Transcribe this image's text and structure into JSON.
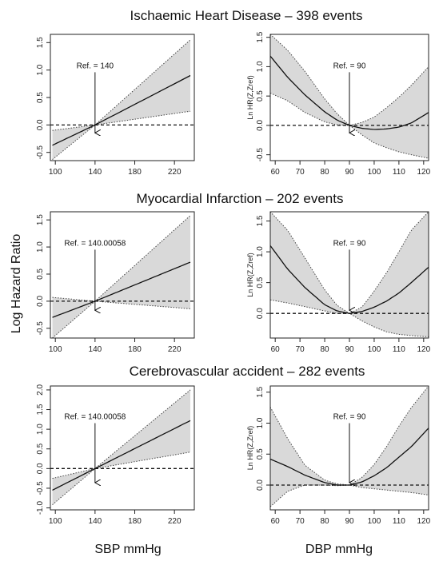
{
  "figure": {
    "y_axis_title": "Log Hazard Ratio",
    "x_axis_title_left": "SBP mmHg",
    "x_axis_title_right": "DBP mmHg",
    "rows": [
      {
        "title": "Ischaemic Heart Disease – 398 events"
      },
      {
        "title": "Myocardial Infarction – 202 events"
      },
      {
        "title": "Cerebrovascular accident – 282 events"
      }
    ]
  },
  "colors": {
    "band": "#d9d9d9",
    "line": "#111111",
    "axis": "#222222"
  },
  "chart_data": [
    {
      "type": "line",
      "row": 0,
      "col": 0,
      "ref_label": "Ref. = 140",
      "ref_x": 140,
      "ylabel": "",
      "xlim": [
        95,
        240
      ],
      "ylim": [
        -0.65,
        1.65
      ],
      "xticks": [
        100,
        140,
        180,
        220
      ],
      "yticks": [
        -0.5,
        0.0,
        0.5,
        1.0,
        1.5
      ],
      "ytick_labels": [
        "-0.5",
        "0.0",
        "0.5",
        "1.0",
        "1.5"
      ],
      "x": [
        97,
        140,
        236
      ],
      "series": [
        {
          "role": "estimate",
          "values": [
            -0.37,
            0.0,
            0.9
          ]
        },
        {
          "role": "upper",
          "values": [
            -0.1,
            0.0,
            1.55
          ]
        },
        {
          "role": "lower",
          "values": [
            -0.63,
            0.0,
            0.25
          ]
        }
      ]
    },
    {
      "type": "line",
      "row": 0,
      "col": 1,
      "ref_label": "Ref. = 90",
      "ref_x": 90,
      "ylabel": "Ln HR(Z,Zref)",
      "xlim": [
        58,
        122
      ],
      "ylim": [
        -0.6,
        1.55
      ],
      "xticks": [
        60,
        70,
        80,
        90,
        100,
        110,
        120
      ],
      "yticks": [
        -0.5,
        0.0,
        0.5,
        1.0,
        1.5
      ],
      "ytick_labels": [
        "-0.5",
        "0.0",
        "0.5",
        "1.0",
        "1.5"
      ],
      "x": [
        58,
        65,
        72,
        80,
        85,
        90,
        95,
        100,
        105,
        110,
        115,
        122
      ],
      "series": [
        {
          "role": "estimate",
          "values": [
            1.18,
            0.82,
            0.52,
            0.23,
            0.09,
            0.0,
            -0.05,
            -0.07,
            -0.06,
            -0.03,
            0.04,
            0.22
          ]
        },
        {
          "role": "upper",
          "values": [
            1.55,
            1.28,
            0.92,
            0.45,
            0.2,
            0.0,
            0.05,
            0.14,
            0.3,
            0.48,
            0.68,
            1.0
          ]
        },
        {
          "role": "lower",
          "values": [
            0.55,
            0.42,
            0.22,
            0.06,
            0.01,
            0.0,
            -0.16,
            -0.3,
            -0.38,
            -0.45,
            -0.5,
            -0.56
          ]
        }
      ]
    },
    {
      "type": "line",
      "row": 1,
      "col": 0,
      "ref_label": "Ref. = 140.00058",
      "ref_x": 140,
      "ylabel": "",
      "xlim": [
        95,
        240
      ],
      "ylim": [
        -0.68,
        1.65
      ],
      "xticks": [
        100,
        140,
        180,
        220
      ],
      "yticks": [
        -0.5,
        0.0,
        0.5,
        1.0,
        1.5
      ],
      "ytick_labels": [
        "-0.5",
        "0.0",
        "0.5",
        "1.0",
        "1.5"
      ],
      "x": [
        97,
        140,
        236
      ],
      "series": [
        {
          "role": "estimate",
          "values": [
            -0.3,
            0.0,
            0.72
          ]
        },
        {
          "role": "upper",
          "values": [
            0.07,
            0.0,
            1.58
          ]
        },
        {
          "role": "lower",
          "values": [
            -0.68,
            0.0,
            -0.14
          ]
        }
      ]
    },
    {
      "type": "line",
      "row": 1,
      "col": 1,
      "ref_label": "Ref. = 90",
      "ref_x": 90,
      "ylabel": "Ln HR(Z,Zref)",
      "xlim": [
        58,
        122
      ],
      "ylim": [
        -0.4,
        1.65
      ],
      "xticks": [
        60,
        70,
        80,
        90,
        100,
        110,
        120
      ],
      "yticks": [
        0.0,
        0.5,
        1.0,
        1.5
      ],
      "ytick_labels": [
        "0.0",
        "0.5",
        "1.0",
        "1.5"
      ],
      "x": [
        58,
        65,
        72,
        80,
        85,
        90,
        95,
        100,
        105,
        110,
        115,
        122
      ],
      "series": [
        {
          "role": "estimate",
          "values": [
            1.1,
            0.72,
            0.42,
            0.14,
            0.04,
            0.0,
            0.03,
            0.1,
            0.2,
            0.33,
            0.5,
            0.75
          ]
        },
        {
          "role": "upper",
          "values": [
            1.65,
            1.35,
            0.9,
            0.38,
            0.13,
            0.0,
            0.1,
            0.36,
            0.66,
            1.0,
            1.35,
            1.65
          ]
        },
        {
          "role": "lower",
          "values": [
            0.22,
            0.17,
            0.11,
            0.04,
            0.0,
            0.0,
            -0.12,
            -0.22,
            -0.3,
            -0.34,
            -0.36,
            -0.38
          ]
        }
      ]
    },
    {
      "type": "line",
      "row": 2,
      "col": 0,
      "ref_label": "Ref. = 140.00058",
      "ref_x": 140,
      "ylabel": "",
      "xlim": [
        95,
        240
      ],
      "ylim": [
        -1.05,
        2.1
      ],
      "xticks": [
        100,
        140,
        180,
        220
      ],
      "yticks": [
        -1.0,
        -0.5,
        0.0,
        0.5,
        1.0,
        1.5,
        2.0
      ],
      "ytick_labels": [
        "-1.0",
        "-0.5",
        "0.0",
        "0.5",
        "1.0",
        "1.5",
        "2.0"
      ],
      "x": [
        97,
        140,
        236
      ],
      "series": [
        {
          "role": "estimate",
          "values": [
            -0.55,
            0.0,
            1.22
          ]
        },
        {
          "role": "upper",
          "values": [
            -0.25,
            0.0,
            2.0
          ]
        },
        {
          "role": "lower",
          "values": [
            -0.92,
            0.0,
            0.42
          ]
        }
      ]
    },
    {
      "type": "line",
      "row": 2,
      "col": 1,
      "ref_label": "Ref. = 90",
      "ref_x": 90,
      "ylabel": "Ln HR(Z,Zref)",
      "xlim": [
        58,
        122
      ],
      "ylim": [
        -0.4,
        1.6
      ],
      "xticks": [
        60,
        70,
        80,
        90,
        100,
        110,
        120
      ],
      "yticks": [
        0.0,
        0.5,
        1.0,
        1.5
      ],
      "ytick_labels": [
        "0.0",
        "0.5",
        "1.0",
        "1.5"
      ],
      "x": [
        58,
        65,
        72,
        80,
        85,
        90,
        95,
        100,
        105,
        110,
        115,
        122
      ],
      "series": [
        {
          "role": "estimate",
          "values": [
            0.42,
            0.3,
            0.16,
            0.04,
            0.0,
            0.0,
            0.05,
            0.15,
            0.28,
            0.45,
            0.62,
            0.92
          ]
        },
        {
          "role": "upper",
          "values": [
            1.26,
            0.75,
            0.32,
            0.08,
            0.02,
            0.0,
            0.12,
            0.33,
            0.62,
            0.95,
            1.25,
            1.6
          ]
        },
        {
          "role": "lower",
          "values": [
            -0.35,
            -0.1,
            0.0,
            0.0,
            -0.01,
            0.0,
            -0.04,
            -0.06,
            -0.08,
            -0.1,
            -0.12,
            -0.16
          ]
        }
      ]
    }
  ]
}
